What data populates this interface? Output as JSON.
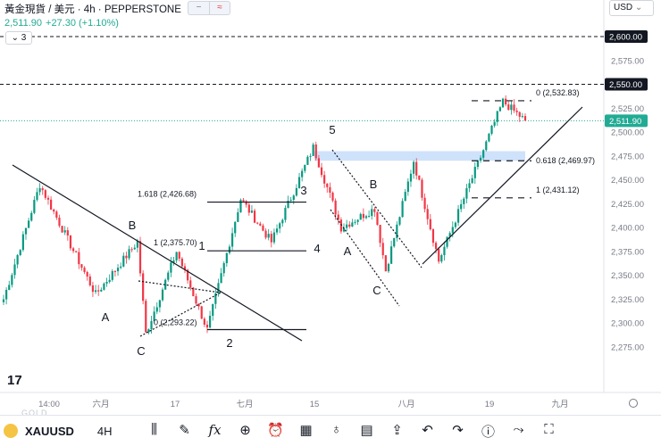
{
  "header": {
    "title": "黃金現貨 / 美元 · 4h · PEPPERSTONE",
    "price": "2,511.90",
    "change": "+27.30 (+1.10%)",
    "collapse_label": "3",
    "currency": "USD"
  },
  "colors": {
    "up": "#089981",
    "down": "#f23645",
    "current": "#22ab94",
    "zone": "#cfe2fb",
    "axis_text": "#787b86"
  },
  "price_axis": {
    "ticks": [
      "2,575.00",
      "2,525.00",
      "2,500.00",
      "2,475.00",
      "2,450.00",
      "2,425.00",
      "2,400.00",
      "2,375.00",
      "2,350.00",
      "2,325.00",
      "2,300.00",
      "2,275.00"
    ],
    "badges": [
      "2,600.00",
      "2,550.00"
    ],
    "current_badge": "2,511.90"
  },
  "time_axis": {
    "ticks": [
      "14:00",
      "六月",
      "17",
      "七月",
      "15",
      "八月",
      "19",
      "九月"
    ]
  },
  "fib_labels": [
    "0 (2,532.83)",
    "0.618 (2,469.97)",
    "1 (2,431.12)",
    "1.618 (2,426.68)",
    "1 (2,375.70)",
    "0 (2,293.22)"
  ],
  "wave_labels": [
    "A",
    "B",
    "C",
    "1",
    "2",
    "3",
    "4",
    "5",
    "A",
    "B",
    "C"
  ],
  "chart_data": {
    "type": "candlestick",
    "symbol": "XAUUSD",
    "interval": "4h",
    "ylim": [
      2260,
      2610
    ],
    "last_price": 2511.9,
    "key_points": [
      {
        "label": "start",
        "close": 2325
      },
      {
        "label": "peak",
        "close": 2445
      },
      {
        "label": "A",
        "close": 2330
      },
      {
        "label": "B",
        "close": 2385
      },
      {
        "label": "C",
        "close": 2289
      },
      {
        "label": "1",
        "close": 2375
      },
      {
        "label": "2",
        "close": 2293
      },
      {
        "label": "3",
        "close": 2430
      },
      {
        "label": "4",
        "close": 2385
      },
      {
        "label": "5",
        "close": 2484
      },
      {
        "label": "A",
        "close": 2400
      },
      {
        "label": "B",
        "close": 2420
      },
      {
        "label": "C",
        "close": 2355
      },
      {
        "label": "bounce",
        "close": 2470
      },
      {
        "label": "low",
        "close": 2365
      },
      {
        "label": "high",
        "close": 2532
      },
      {
        "label": "last",
        "close": 2512
      }
    ]
  },
  "toolbar": {
    "symbol": "XAUUSD",
    "interval": "4H",
    "ghost_text": "GOLD",
    "tv_logo": "17",
    "icons": [
      "candles-icon",
      "pen-icon",
      "fx-icon",
      "plus-icon",
      "alarm-icon",
      "grid-icon",
      "bulb-icon",
      "calendar-icon",
      "share-icon",
      "undo-icon",
      "redo-icon",
      "info-icon",
      "chart-icon",
      "fullscreen-icon"
    ]
  }
}
